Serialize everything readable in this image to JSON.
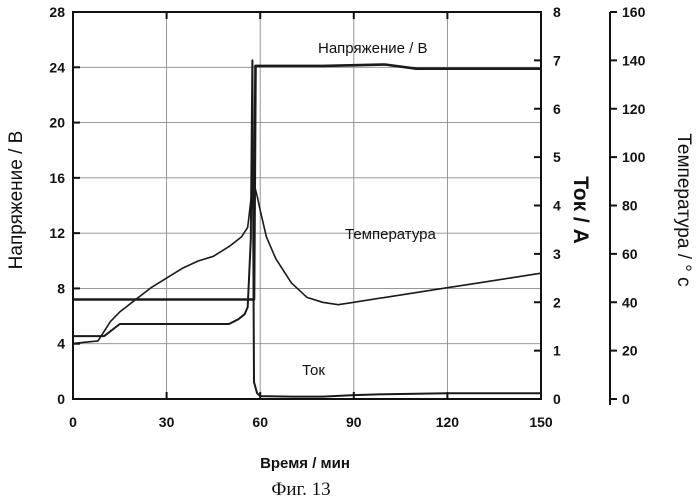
{
  "chart_data": {
    "type": "line",
    "caption": "Фиг. 13",
    "xlabel": "Время / мин",
    "xlim": [
      0,
      150
    ],
    "x_ticks": [
      0,
      30,
      60,
      90,
      120,
      150
    ],
    "x_tick_labels": [
      "0",
      "30",
      "60",
      "90",
      "120",
      "150"
    ],
    "axes": {
      "voltage": {
        "label": "Напряжение / В",
        "lim": [
          0,
          28
        ],
        "ticks": [
          0,
          4,
          8,
          12,
          16,
          20,
          24,
          28
        ],
        "tick_labels": [
          "0",
          "4",
          "8",
          "12",
          "16",
          "20",
          "24",
          "28"
        ]
      },
      "current": {
        "label": "Ток / А",
        "lim": [
          0,
          8
        ],
        "ticks": [
          0,
          1,
          2,
          3,
          4,
          5,
          6,
          7,
          8
        ],
        "tick_labels": [
          "0",
          "1",
          "2",
          "3",
          "4",
          "5",
          "6",
          "7",
          "8"
        ]
      },
      "temperature": {
        "label": "Температура  / ° с",
        "lim": [
          0,
          160
        ],
        "ticks": [
          0,
          20,
          40,
          60,
          80,
          100,
          120,
          140,
          160
        ],
        "tick_labels": [
          "0",
          "20",
          "40",
          "60",
          "80",
          "100",
          "120",
          "140",
          "160"
        ]
      }
    },
    "grid": true,
    "series": [
      {
        "name": "Напряжение / В",
        "axis": "voltage",
        "x": [
          0,
          56,
          57,
          58,
          58.5,
          80,
          100,
          110,
          150
        ],
        "y": [
          7.2,
          7.2,
          7.2,
          7.2,
          24.1,
          24.1,
          24.2,
          23.9,
          23.9
        ]
      },
      {
        "name": "Температура",
        "axis": "temperature",
        "x": [
          0,
          8,
          12,
          15,
          20,
          25,
          30,
          35,
          40,
          45,
          50,
          54,
          56,
          57,
          58,
          59,
          60,
          62,
          65,
          70,
          75,
          80,
          85,
          90,
          100,
          110,
          120,
          130,
          140,
          150
        ],
        "y": [
          23,
          24,
          32,
          36,
          41,
          46,
          50,
          54,
          57,
          59,
          63,
          67,
          71,
          82,
          89,
          84,
          78,
          67,
          58,
          48,
          42,
          40,
          39,
          40,
          42,
          44,
          46,
          48,
          50,
          52
        ]
      },
      {
        "name": "Ток",
        "axis": "current",
        "x": [
          0,
          10,
          15,
          30,
          50,
          53,
          55,
          56,
          57,
          57.5,
          58,
          59,
          60,
          70,
          80,
          90,
          100,
          120,
          140,
          150
        ],
        "y": [
          1.3,
          1.3,
          1.55,
          1.55,
          1.55,
          1.65,
          1.75,
          1.9,
          3.3,
          7.0,
          0.35,
          0.12,
          0.06,
          0.05,
          0.05,
          0.08,
          0.1,
          0.12,
          0.12,
          0.12
        ]
      }
    ]
  }
}
